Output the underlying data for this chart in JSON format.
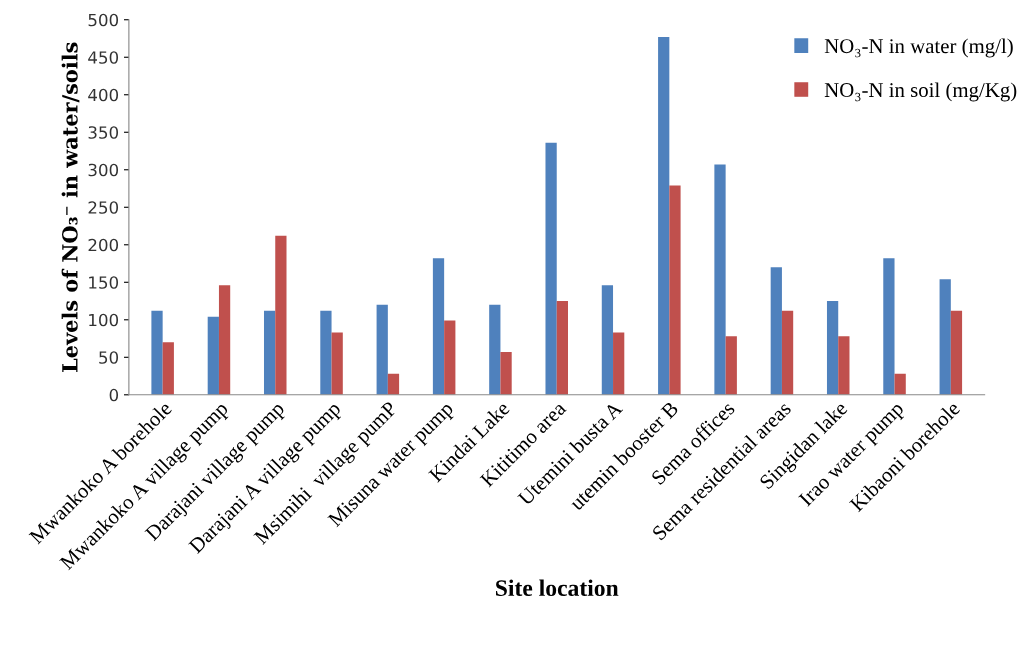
{
  "chart_data": {
    "type": "bar",
    "xlabel": "Site location",
    "ylabel": "Levels of NO₃⁻ in water/soils",
    "categories": [
      "Mwankoko A borehole",
      "Mwankoko A village pump",
      "Darajani village pump",
      "Darajani A village pump",
      "Msimihi  village pumP",
      "Misuna water pump",
      "Kindai Lake",
      "Kititimo area",
      "Utemini busta A",
      "utemin booster B",
      "Sema offices",
      "Sema residential areas",
      "Singidan lake",
      "Irao water pump",
      "Kibaoni borehole"
    ],
    "series": [
      {
        "name": "NO₃-N in water (mg/l)",
        "color": "#4f81bd",
        "values": [
          112,
          104,
          112,
          112,
          120,
          182,
          120,
          336,
          146,
          477,
          307,
          170,
          125,
          182,
          154
        ]
      },
      {
        "name": "NO₃-N in soil (mg/Kg)",
        "color": "#c0504d",
        "values": [
          70,
          146,
          212,
          83,
          28,
          99,
          57,
          125,
          83,
          279,
          78,
          112,
          78,
          28,
          112
        ]
      }
    ],
    "ylim": [
      0,
      500
    ],
    "yticks": [
      0,
      50,
      100,
      150,
      200,
      250,
      300,
      350,
      400,
      450,
      500
    ],
    "grid": false,
    "legend": "top right"
  }
}
